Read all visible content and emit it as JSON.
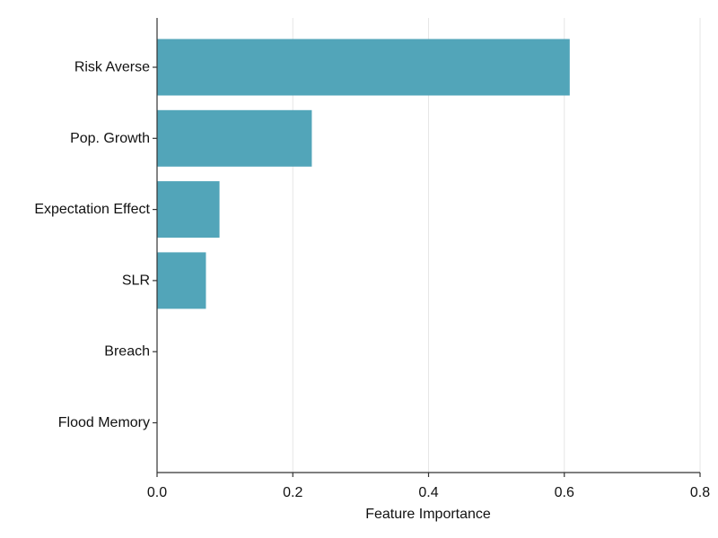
{
  "chart_data": {
    "type": "bar",
    "orientation": "horizontal",
    "title": "",
    "xlabel": "Feature Importance",
    "ylabel": "",
    "categories": [
      "Risk Averse",
      "Pop. Growth",
      "Expectation Effect",
      "SLR",
      "Breach",
      "Flood Memory"
    ],
    "values": [
      0.608,
      0.228,
      0.092,
      0.072,
      0.0,
      0.0
    ],
    "xlim": [
      0,
      0.8
    ],
    "xticks": [
      0.0,
      0.2,
      0.4,
      0.6,
      0.8
    ],
    "xtick_labels": [
      "0.0",
      "0.2",
      "0.4",
      "0.6",
      "0.8"
    ],
    "grid": "vertical",
    "legend": "none",
    "bar_color": "#52a5b9",
    "grid_color": "#e6e6e6",
    "axis_color": "#333333"
  }
}
